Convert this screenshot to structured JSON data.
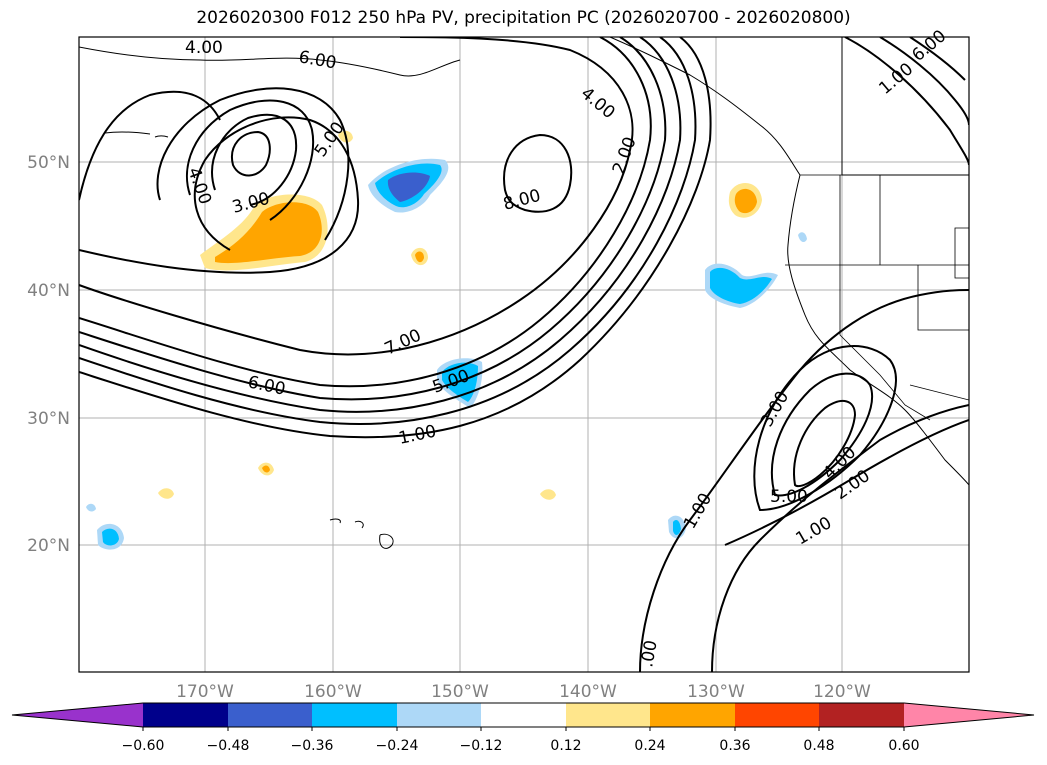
{
  "title": "2026020300 F012 250 hPa PV, precipitation PC (2026020700 - 2026020800)",
  "lat_labels": [
    "50°N",
    "40°N",
    "30°N",
    "20°N"
  ],
  "lon_labels": [
    "170°W",
    "160°W",
    "150°W",
    "140°W",
    "130°W",
    "120°W"
  ],
  "contour_labels": [
    "4.00",
    "6.00",
    "3.00",
    "5.00",
    "4.00",
    "8.00",
    "2.00",
    "4.00",
    "7.00",
    "6.00",
    "5.00",
    "1.00",
    "3.00",
    "4.00",
    "2.00",
    "5.00",
    "1.00",
    "1.00",
    "1.00",
    "6.00",
    ".00"
  ],
  "colorbar": {
    "ticks": [
      "−0.60",
      "−0.48",
      "−0.36",
      "−0.24",
      "−0.12",
      "0.12",
      "0.24",
      "0.36",
      "0.48",
      "0.60"
    ],
    "colors": [
      "#9932cc",
      "#00008b",
      "#3a5fcd",
      "#00bfff",
      "#add8f7",
      "#ffffff",
      "#ffe68c",
      "#ffa500",
      "#ff4500",
      "#b22222",
      "#ff85a8"
    ]
  },
  "chart_data": {
    "type": "contour_map",
    "title": "2026020300 F012 250 hPa PV, precipitation PC (2026020700 - 2026020800)",
    "lon_range": [
      -180,
      -110
    ],
    "lat_range": [
      10,
      60
    ],
    "contour_field": "250 hPa PV",
    "contour_levels": [
      1,
      2,
      3,
      4,
      5,
      6,
      7,
      8
    ],
    "shaded_field": "precipitation PC",
    "shade_levels": [
      -0.6,
      -0.48,
      -0.36,
      -0.24,
      -0.12,
      0.12,
      0.24,
      0.36,
      0.48,
      0.6
    ]
  }
}
